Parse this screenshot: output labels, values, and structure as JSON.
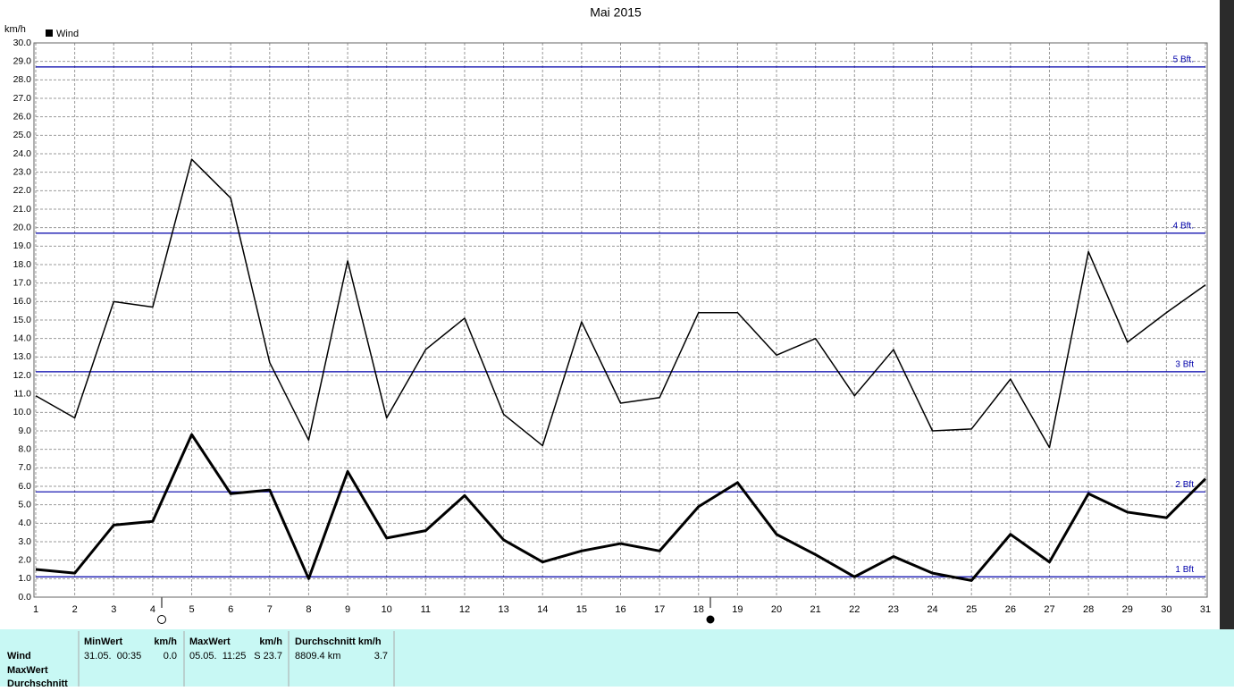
{
  "chart_data": {
    "type": "line",
    "title": "Mai 2015",
    "y_label": "km/h",
    "legend": "Wind",
    "x": [
      1,
      2,
      3,
      4,
      5,
      6,
      7,
      8,
      9,
      10,
      11,
      12,
      13,
      14,
      15,
      16,
      17,
      18,
      19,
      20,
      21,
      22,
      23,
      24,
      25,
      26,
      27,
      28,
      29,
      30,
      31
    ],
    "xlim": [
      1,
      31
    ],
    "xticks": [
      1,
      2,
      3,
      4,
      5,
      6,
      7,
      8,
      9,
      10,
      11,
      12,
      13,
      14,
      15,
      16,
      17,
      18,
      19,
      20,
      21,
      22,
      23,
      24,
      25,
      26,
      27,
      28,
      29,
      30,
      31
    ],
    "ylim": [
      0,
      30
    ],
    "yticks": [
      {
        "value": 0,
        "label": "0.0"
      },
      {
        "value": 1,
        "label": "1.0"
      },
      {
        "value": 2,
        "label": "2.0"
      },
      {
        "value": 3,
        "label": "3.0"
      },
      {
        "value": 4,
        "label": "4.0"
      },
      {
        "value": 5,
        "label": "5.0"
      },
      {
        "value": 6,
        "label": "6.0"
      },
      {
        "value": 7,
        "label": "7.0"
      },
      {
        "value": 8,
        "label": "8.0"
      },
      {
        "value": 9,
        "label": "9.0"
      },
      {
        "value": 10,
        "label": "10.0"
      },
      {
        "value": 11,
        "label": "11.0"
      },
      {
        "value": 12,
        "label": "12.0"
      },
      {
        "value": 13,
        "label": "13.0"
      },
      {
        "value": 14,
        "label": "14.0"
      },
      {
        "value": 15,
        "label": "15.0"
      },
      {
        "value": 16,
        "label": "16.0"
      },
      {
        "value": 17,
        "label": "17.0"
      },
      {
        "value": 18,
        "label": "18.0"
      },
      {
        "value": 19,
        "label": "19.0"
      },
      {
        "value": 20,
        "label": "20.0"
      },
      {
        "value": 21,
        "label": "21.0"
      },
      {
        "value": 22,
        "label": "22.0"
      },
      {
        "value": 23,
        "label": "23.0"
      },
      {
        "value": 24,
        "label": "24.0"
      },
      {
        "value": 25,
        "label": "25.0"
      },
      {
        "value": 26,
        "label": "26.0"
      },
      {
        "value": 27,
        "label": "27.0"
      },
      {
        "value": 28,
        "label": "28.0"
      },
      {
        "value": 29,
        "label": "29.0"
      },
      {
        "value": 30,
        "label": "30.0"
      }
    ],
    "grid": true,
    "bft_lines": [
      {
        "value": 28.7,
        "label": "5 Bft."
      },
      {
        "value": 19.7,
        "label": "4 Bft."
      },
      {
        "value": 12.2,
        "label": "3 Bft"
      },
      {
        "value": 5.7,
        "label": "2 Bft"
      },
      {
        "value": 1.1,
        "label": "1 Bft"
      }
    ],
    "bft_color": "#0000aa",
    "series": [
      {
        "color": "#000000",
        "width": 1.5,
        "values": [
          10.9,
          9.7,
          16.0,
          15.7,
          23.7,
          21.6,
          12.7,
          8.5,
          18.2,
          9.7,
          13.4,
          15.1,
          9.9,
          8.2,
          14.9,
          10.5,
          10.8,
          15.4,
          15.4,
          13.1,
          14.0,
          10.9,
          13.4,
          9.0,
          9.1,
          11.8,
          8.1,
          18.7,
          13.8,
          15.4,
          16.9
        ]
      },
      {
        "color": "#000000",
        "width": 3,
        "values": [
          1.5,
          1.3,
          3.9,
          4.1,
          8.8,
          5.6,
          5.8,
          1.0,
          6.8,
          3.2,
          3.6,
          5.5,
          3.1,
          1.9,
          2.5,
          2.9,
          2.5,
          4.9,
          6.2,
          3.4,
          2.3,
          1.1,
          2.2,
          1.3,
          0.9,
          3.4,
          1.9,
          5.6,
          4.6,
          4.3,
          6.4
        ]
      }
    ]
  },
  "table": {
    "row_labels": [
      "Wind",
      "MaxWert",
      "Durchschnitt"
    ],
    "headers": [
      [
        "MinWert",
        "km/h"
      ],
      [
        "MaxWert",
        "km/h"
      ],
      [
        "Durchschnitt km/h"
      ]
    ],
    "cells": [
      [
        "31.05.  00:35",
        "0.0"
      ],
      [
        "05.05.  11:25",
        "S 23.7"
      ],
      [
        "8809.4 km",
        "3.7"
      ]
    ]
  }
}
